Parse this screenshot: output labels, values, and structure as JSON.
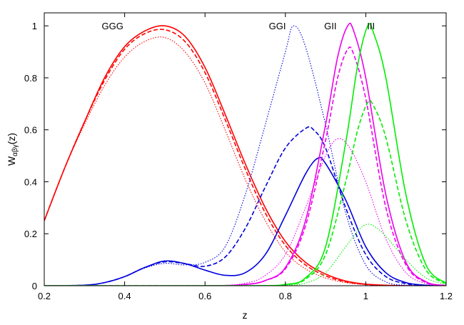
{
  "chart_data": {
    "type": "line",
    "xlabel": "z",
    "ylabel": "W",
    "ylabel_sub": "αβγ",
    "ylabel_suffix": "(z)",
    "xlim": [
      0.2,
      1.2
    ],
    "ylim": [
      0,
      1.05
    ],
    "grid": false,
    "xticks": [
      0.2,
      0.4,
      0.6,
      0.8,
      1.0,
      1.2
    ],
    "xtick_labels": [
      "0.2",
      "0.4",
      "0.6",
      "0.8",
      "1",
      "1.2"
    ],
    "yticks": [
      0,
      0.2,
      0.4,
      0.6,
      0.8,
      1.0
    ],
    "ytick_labels": [
      "0",
      "0.2",
      "0.4",
      "0.6",
      "0.8",
      "1"
    ],
    "annotations": [
      {
        "text": "GGG",
        "x": 0.37,
        "y": 1.0
      },
      {
        "text": "GGI",
        "x": 0.78,
        "y": 1.0
      },
      {
        "text": "GII",
        "x": 0.912,
        "y": 1.0
      },
      {
        "text": "III",
        "x": 1.013,
        "y": 1.0
      }
    ],
    "series": [
      {
        "color": "#ff0000",
        "style": "solid",
        "points": [
          [
            0.2,
            0.25
          ],
          [
            0.25,
            0.45
          ],
          [
            0.3,
            0.63
          ],
          [
            0.35,
            0.8
          ],
          [
            0.4,
            0.92
          ],
          [
            0.45,
            0.98
          ],
          [
            0.5,
            1.0
          ],
          [
            0.55,
            0.96
          ],
          [
            0.6,
            0.84
          ],
          [
            0.65,
            0.66
          ],
          [
            0.7,
            0.47
          ],
          [
            0.75,
            0.3
          ],
          [
            0.8,
            0.17
          ],
          [
            0.85,
            0.09
          ],
          [
            0.9,
            0.045
          ],
          [
            0.95,
            0.018
          ],
          [
            1.0,
            0.006
          ],
          [
            1.05,
            0.002
          ],
          [
            1.1,
            0.0
          ],
          [
            1.2,
            0.0
          ]
        ]
      },
      {
        "color": "#ff0000",
        "style": "dashed",
        "points": [
          [
            0.2,
            0.25
          ],
          [
            0.25,
            0.45
          ],
          [
            0.3,
            0.63
          ],
          [
            0.35,
            0.79
          ],
          [
            0.4,
            0.91
          ],
          [
            0.45,
            0.97
          ],
          [
            0.5,
            0.985
          ],
          [
            0.55,
            0.94
          ],
          [
            0.6,
            0.82
          ],
          [
            0.65,
            0.64
          ],
          [
            0.7,
            0.45
          ],
          [
            0.75,
            0.28
          ],
          [
            0.8,
            0.155
          ],
          [
            0.85,
            0.08
          ],
          [
            0.9,
            0.038
          ],
          [
            0.95,
            0.015
          ],
          [
            1.0,
            0.005
          ],
          [
            1.05,
            0.001
          ],
          [
            1.1,
            0.0
          ],
          [
            1.2,
            0.0
          ]
        ]
      },
      {
        "color": "#ff0000",
        "style": "dotted",
        "points": [
          [
            0.2,
            0.25
          ],
          [
            0.25,
            0.45
          ],
          [
            0.3,
            0.62
          ],
          [
            0.35,
            0.77
          ],
          [
            0.4,
            0.88
          ],
          [
            0.45,
            0.94
          ],
          [
            0.5,
            0.955
          ],
          [
            0.55,
            0.9
          ],
          [
            0.6,
            0.78
          ],
          [
            0.65,
            0.6
          ],
          [
            0.7,
            0.41
          ],
          [
            0.75,
            0.25
          ],
          [
            0.8,
            0.13
          ],
          [
            0.85,
            0.065
          ],
          [
            0.9,
            0.03
          ],
          [
            0.95,
            0.012
          ],
          [
            1.0,
            0.004
          ],
          [
            1.05,
            0.001
          ],
          [
            1.1,
            0.0
          ],
          [
            1.2,
            0.0
          ]
        ]
      },
      {
        "color": "#0000dd",
        "style": "solid",
        "points": [
          [
            0.2,
            0.0
          ],
          [
            0.3,
            0.002
          ],
          [
            0.35,
            0.012
          ],
          [
            0.4,
            0.035
          ],
          [
            0.45,
            0.07
          ],
          [
            0.5,
            0.095
          ],
          [
            0.55,
            0.085
          ],
          [
            0.6,
            0.06
          ],
          [
            0.65,
            0.04
          ],
          [
            0.7,
            0.05
          ],
          [
            0.75,
            0.12
          ],
          [
            0.8,
            0.27
          ],
          [
            0.85,
            0.43
          ],
          [
            0.88,
            0.49
          ],
          [
            0.9,
            0.47
          ],
          [
            0.95,
            0.33
          ],
          [
            1.0,
            0.15
          ],
          [
            1.05,
            0.05
          ],
          [
            1.1,
            0.012
          ],
          [
            1.15,
            0.002
          ],
          [
            1.2,
            0.0
          ]
        ]
      },
      {
        "color": "#0000dd",
        "style": "dashed",
        "points": [
          [
            0.2,
            0.0
          ],
          [
            0.3,
            0.002
          ],
          [
            0.35,
            0.012
          ],
          [
            0.4,
            0.035
          ],
          [
            0.45,
            0.07
          ],
          [
            0.5,
            0.092
          ],
          [
            0.55,
            0.085
          ],
          [
            0.6,
            0.075
          ],
          [
            0.65,
            0.11
          ],
          [
            0.7,
            0.22
          ],
          [
            0.75,
            0.38
          ],
          [
            0.8,
            0.53
          ],
          [
            0.85,
            0.605
          ],
          [
            0.87,
            0.6
          ],
          [
            0.9,
            0.53
          ],
          [
            0.95,
            0.3
          ],
          [
            1.0,
            0.12
          ],
          [
            1.05,
            0.035
          ],
          [
            1.1,
            0.008
          ],
          [
            1.15,
            0.001
          ],
          [
            1.2,
            0.0
          ]
        ]
      },
      {
        "color": "#0000dd",
        "style": "dotted",
        "points": [
          [
            0.2,
            0.0
          ],
          [
            0.3,
            0.002
          ],
          [
            0.35,
            0.012
          ],
          [
            0.4,
            0.035
          ],
          [
            0.45,
            0.068
          ],
          [
            0.5,
            0.086
          ],
          [
            0.55,
            0.08
          ],
          [
            0.6,
            0.09
          ],
          [
            0.65,
            0.15
          ],
          [
            0.7,
            0.35
          ],
          [
            0.75,
            0.62
          ],
          [
            0.8,
            0.9
          ],
          [
            0.82,
            1.0
          ],
          [
            0.85,
            0.92
          ],
          [
            0.9,
            0.62
          ],
          [
            0.95,
            0.28
          ],
          [
            1.0,
            0.08
          ],
          [
            1.05,
            0.015
          ],
          [
            1.1,
            0.002
          ],
          [
            1.2,
            0.0
          ]
        ]
      },
      {
        "color": "#ee00ee",
        "style": "solid",
        "points": [
          [
            0.2,
            0.0
          ],
          [
            0.6,
            0.0
          ],
          [
            0.7,
            0.005
          ],
          [
            0.75,
            0.02
          ],
          [
            0.8,
            0.07
          ],
          [
            0.85,
            0.25
          ],
          [
            0.9,
            0.62
          ],
          [
            0.93,
            0.88
          ],
          [
            0.955,
            1.0
          ],
          [
            0.97,
            0.98
          ],
          [
            1.0,
            0.8
          ],
          [
            1.05,
            0.35
          ],
          [
            1.1,
            0.09
          ],
          [
            1.15,
            0.015
          ],
          [
            1.2,
            0.001
          ]
        ]
      },
      {
        "color": "#ee00ee",
        "style": "dashed",
        "points": [
          [
            0.2,
            0.0
          ],
          [
            0.6,
            0.0
          ],
          [
            0.7,
            0.005
          ],
          [
            0.75,
            0.02
          ],
          [
            0.8,
            0.065
          ],
          [
            0.85,
            0.23
          ],
          [
            0.9,
            0.56
          ],
          [
            0.93,
            0.8
          ],
          [
            0.955,
            0.91
          ],
          [
            0.97,
            0.89
          ],
          [
            1.0,
            0.72
          ],
          [
            1.05,
            0.3
          ],
          [
            1.1,
            0.08
          ],
          [
            1.15,
            0.012
          ],
          [
            1.2,
            0.001
          ]
        ]
      },
      {
        "color": "#ee00ee",
        "style": "dotted",
        "points": [
          [
            0.2,
            0.0
          ],
          [
            0.6,
            0.0
          ],
          [
            0.7,
            0.01
          ],
          [
            0.75,
            0.04
          ],
          [
            0.8,
            0.12
          ],
          [
            0.85,
            0.3
          ],
          [
            0.9,
            0.5
          ],
          [
            0.93,
            0.565
          ],
          [
            0.96,
            0.53
          ],
          [
            1.0,
            0.4
          ],
          [
            1.05,
            0.18
          ],
          [
            1.1,
            0.05
          ],
          [
            1.15,
            0.008
          ],
          [
            1.2,
            0.001
          ]
        ]
      },
      {
        "color": "#00ee00",
        "style": "solid",
        "points": [
          [
            0.2,
            0.0
          ],
          [
            0.7,
            0.0
          ],
          [
            0.8,
            0.005
          ],
          [
            0.85,
            0.03
          ],
          [
            0.9,
            0.15
          ],
          [
            0.95,
            0.55
          ],
          [
            0.98,
            0.85
          ],
          [
            1.005,
            1.0
          ],
          [
            1.02,
            0.97
          ],
          [
            1.05,
            0.8
          ],
          [
            1.1,
            0.35
          ],
          [
            1.15,
            0.08
          ],
          [
            1.2,
            0.01
          ]
        ]
      },
      {
        "color": "#00ee00",
        "style": "dashed",
        "points": [
          [
            0.2,
            0.0
          ],
          [
            0.7,
            0.0
          ],
          [
            0.8,
            0.004
          ],
          [
            0.85,
            0.025
          ],
          [
            0.9,
            0.12
          ],
          [
            0.95,
            0.4
          ],
          [
            0.98,
            0.6
          ],
          [
            1.005,
            0.705
          ],
          [
            1.02,
            0.69
          ],
          [
            1.05,
            0.57
          ],
          [
            1.1,
            0.25
          ],
          [
            1.15,
            0.06
          ],
          [
            1.2,
            0.008
          ]
        ]
      },
      {
        "color": "#00ee00",
        "style": "dotted",
        "points": [
          [
            0.2,
            0.0
          ],
          [
            0.7,
            0.0
          ],
          [
            0.8,
            0.002
          ],
          [
            0.85,
            0.01
          ],
          [
            0.9,
            0.05
          ],
          [
            0.95,
            0.15
          ],
          [
            0.98,
            0.21
          ],
          [
            1.0,
            0.235
          ],
          [
            1.02,
            0.23
          ],
          [
            1.05,
            0.19
          ],
          [
            1.1,
            0.1
          ],
          [
            1.15,
            0.03
          ],
          [
            1.2,
            0.005
          ]
        ]
      }
    ]
  }
}
